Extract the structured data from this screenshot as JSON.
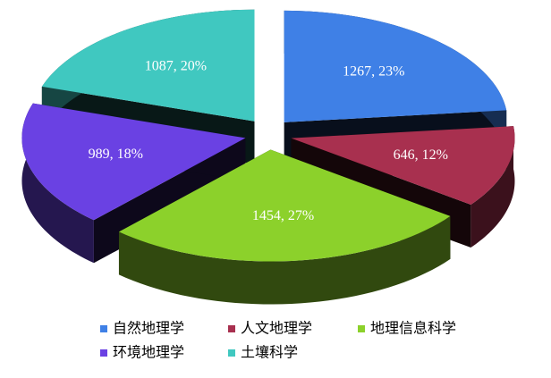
{
  "chart_data": {
    "type": "pie",
    "categories": [
      "自然地理学",
      "人文地理学",
      "地理信息科学",
      "环境地理学",
      "土壤科学"
    ],
    "values": [
      1267,
      646,
      1454,
      989,
      1087
    ],
    "value_labels": [
      "1267, 23%",
      "646, 12%",
      "1454, 27%",
      "989, 18%",
      "1087, 20%"
    ],
    "colors": [
      "#3f80e6",
      "#a8304f",
      "#8cd12b",
      "#6a41e3",
      "#40c8c0"
    ],
    "legend": "bottom"
  }
}
